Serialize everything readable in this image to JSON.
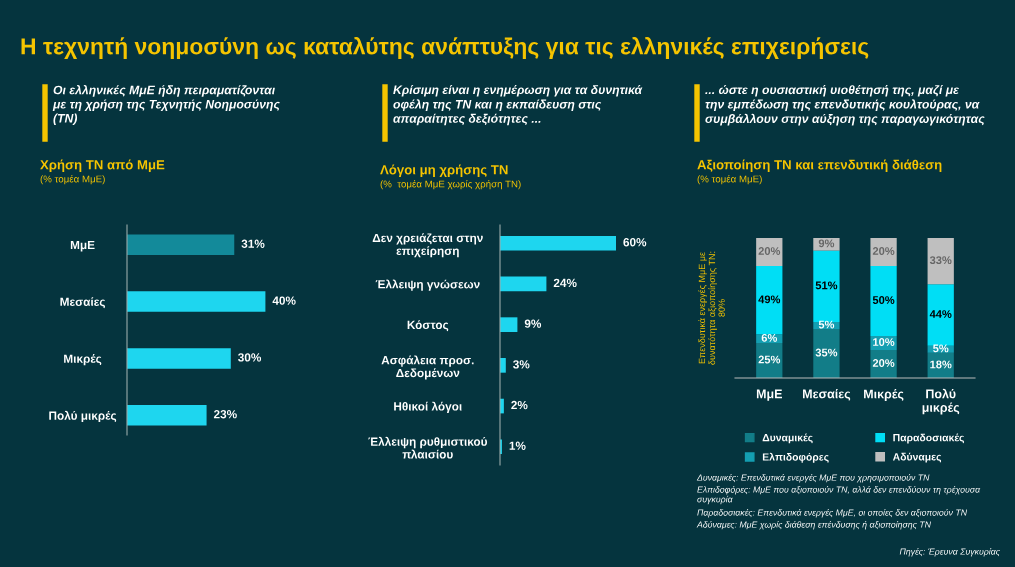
{
  "chart_data": [
    {
      "type": "bar",
      "orientation": "horizontal",
      "title": "Χρήση ΤΝ από ΜμΕ",
      "subtitle": "(% τομέα ΜμΕ)",
      "categories": [
        "ΜμΕ",
        "Μεσαίες",
        "Μικρές",
        "Πολύ μικρές"
      ],
      "values": [
        31,
        40,
        30,
        23
      ],
      "colors": [
        "#138a9a",
        "#1ed6ef",
        "#1ed6ef",
        "#1ed6ef"
      ],
      "value_labels": [
        "31%",
        "40%",
        "30%",
        "23%"
      ],
      "annotations": [
        "Η τεχνητή νοημοσύνη ως καταλύτης ανάπτυξης για τις ελληνικές επιχειρήσεις",
        "Οι ελληνικές ΜμΕ ήδη πειραματίζονται\nμε τη χρήση της Τεχνητής Νοημοσύνης\n(ΤΝ)"
      ]
    },
    {
      "type": "bar",
      "orientation": "horizontal",
      "title": "Λόγοι μη χρήσης ΤΝ",
      "subtitle": "(%  τομέα ΜμΕ χωρίς χρήση ΤΝ)",
      "categories": [
        "Δεν χρειάζεται στην\nεπιχείρηση",
        "Έλλειψη γνώσεων",
        "Κόστος",
        "Ασφάλεια προσ.\nΔεδομένων",
        "Ηθικοί λόγοι",
        "Έλλειψη ρυθμιστικού\nπλαισίου"
      ],
      "values": [
        60,
        24,
        9,
        3,
        2,
        1
      ],
      "colors": [
        "#1ed6ef",
        "#1ed6ef",
        "#1ed6ef",
        "#1ed6ef",
        "#1ed6ef",
        "#1ed6ef"
      ],
      "value_labels": [
        "60%",
        "24%",
        "9%",
        "3%",
        "2%",
        "1%"
      ],
      "annotations": [
        "Κρίσιμη είναι η ενημέρωση για τα δυνητικά\nοφέλη της ΤΝ και η εκπαίδευση στις\nαπαραίτητες δεξιότητες ..."
      ]
    },
    {
      "type": "bar",
      "stacked": true,
      "title": "Αξιοποίηση ΤΝ και επενδυτική διάθεση",
      "subtitle": "(% τομέα ΜμΕ)",
      "ylabel": "Επενδυτικά ενεργές ΜμΕ με\nδυνατότητα αξιοποίησης ΤΝ:\n80%",
      "legend": "bottom",
      "categories": [
        "ΜμΕ",
        "Μεσαίες",
        "Μικρές",
        "Πολύ\nμικρές"
      ],
      "series": [
        {
          "name": "Δυναμικές",
          "color": "#127d88",
          "values": [
            25,
            35,
            20,
            18
          ],
          "value_labels": [
            "25%",
            "35%",
            "20%",
            "18%"
          ]
        },
        {
          "name": "Ελπιδοφόρες",
          "color": "#149fb2",
          "values": [
            6,
            5,
            10,
            5
          ],
          "value_labels": [
            "6%",
            "5%",
            "10%",
            "5%"
          ]
        },
        {
          "name": "Παραδοσιακές",
          "color": "#00def5",
          "values": [
            49,
            51,
            50,
            44
          ],
          "value_labels": [
            "49%",
            "51%",
            "50%",
            "44%"
          ]
        },
        {
          "name": "Αδύναμες",
          "color": "#bfbfbf",
          "values": [
            20,
            9,
            20,
            33
          ],
          "value_labels": [
            "20%",
            "9%",
            "20%",
            "33%"
          ]
        }
      ],
      "annotations": [
        "... ώστε η ουσιαστική υιοθέτησή της, μαζί με\nτην εμπέδωση της επενδυτικής κουλτούρας, να\nσυμβάλλουν στην αύξηση της παραγωγικότητας",
        "Δυναμικές: Επενδυτικά ενεργές ΜμΕ που χρησιμοποιούν ΤΝ",
        "Ελπιδοφόρες: ΜμΕ που αξιοποιούν ΤΝ, αλλά δεν επενδύουν τη τρέχουσα\nσυγκυρία",
        "Παραδοσιακές: Επενδυτικά ενεργές ΜμΕ, οι οποίες δεν αξιοποιούν ΤΝ",
        "Αδύναμες: ΜμΕ χωρίς διάθεση επένδυσης ή αξιοποίησης ΤΝ",
        "Πηγές: Έρευνα Συγκυρίας"
      ]
    }
  ]
}
